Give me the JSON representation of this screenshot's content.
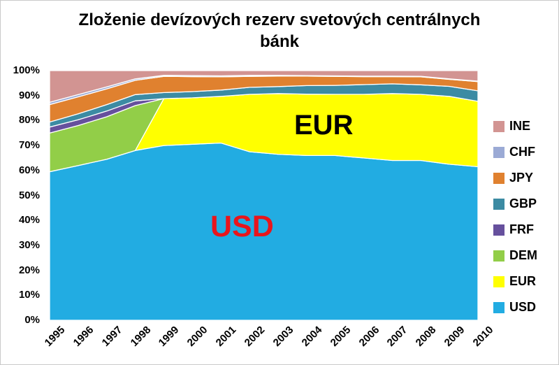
{
  "title": {
    "line1": "Zloženie devízových rezerv svetových centrálnych",
    "line2": "bánk"
  },
  "chart_data": {
    "type": "area",
    "stacked": true,
    "title": "Zloženie devízových rezerv svetových centrálnych bánk",
    "xlabel": "",
    "ylabel": "",
    "ylim": [
      0,
      100
    ],
    "grid": false,
    "legend_position": "right",
    "y_ticks": [
      "100%",
      "90%",
      "80%",
      "70%",
      "60%",
      "50%",
      "40%",
      "30%",
      "20%",
      "10%",
      "0%"
    ],
    "categories": [
      "1995",
      "1996",
      "1997",
      "1998",
      "1999",
      "2000",
      "2001",
      "2002",
      "2003",
      "2004",
      "2005",
      "2006",
      "2007",
      "2008",
      "2009",
      "2010"
    ],
    "series": [
      {
        "name": "USD",
        "color": "#22ACE2",
        "values": [
          59.5,
          62,
          64.5,
          68,
          70,
          70.5,
          71,
          67.5,
          66.5,
          66,
          66,
          65,
          64,
          64,
          62.5,
          61.5
        ]
      },
      {
        "name": "EUR",
        "color": "#FFFF00",
        "values": [
          0,
          0,
          0,
          0,
          18.8,
          18.6,
          18.7,
          23,
          24.3,
          24.6,
          24.5,
          25.5,
          26.8,
          26.5,
          27.2,
          26.2
        ]
      },
      {
        "name": "DEM",
        "color": "#92CE48",
        "values": [
          15.5,
          16,
          17,
          18,
          0,
          0,
          0,
          0,
          0,
          0,
          0,
          0,
          0,
          0,
          0,
          0
        ]
      },
      {
        "name": "FRF",
        "color": "#66509D",
        "values": [
          2.4,
          2.3,
          2.3,
          1.9,
          0,
          0,
          0,
          0,
          0,
          0,
          0,
          0,
          0,
          0,
          0,
          0
        ]
      },
      {
        "name": "GBP",
        "color": "#3C8BA3",
        "values": [
          2.0,
          2.4,
          2.6,
          2.5,
          2.4,
          2.5,
          2.5,
          2.8,
          2.8,
          3.4,
          3.6,
          3.9,
          3.9,
          3.8,
          4.0,
          4.2
        ]
      },
      {
        "name": "JPY",
        "color": "#E0812F",
        "values": [
          7.0,
          6.8,
          6.3,
          5.7,
          6.5,
          6.0,
          5.3,
          4.4,
          4.2,
          3.8,
          3.6,
          3.2,
          2.9,
          3.2,
          2.8,
          3.7
        ]
      },
      {
        "name": "CHF",
        "color": "#9BAAD5",
        "values": [
          0.9,
          0.9,
          0.8,
          0.6,
          0.4,
          0.4,
          0.4,
          0.4,
          0.3,
          0.2,
          0.2,
          0.2,
          0.2,
          0.2,
          0.2,
          0.2
        ]
      },
      {
        "name": "INE",
        "color": "#D29492",
        "values": [
          12.7,
          9.6,
          6.5,
          3.3,
          1.9,
          2.0,
          2.1,
          1.9,
          1.9,
          2.0,
          2.1,
          2.2,
          2.2,
          2.3,
          3.3,
          4.2
        ]
      }
    ],
    "legend": [
      {
        "label": "INE",
        "color": "#D29492"
      },
      {
        "label": "CHF",
        "color": "#9BAAD5"
      },
      {
        "label": "JPY",
        "color": "#E0812F"
      },
      {
        "label": "GBP",
        "color": "#3C8BA3"
      },
      {
        "label": "FRF",
        "color": "#66509D"
      },
      {
        "label": "DEM",
        "color": "#92CE48"
      },
      {
        "label": "EUR",
        "color": "#FFFF00"
      },
      {
        "label": "USD",
        "color": "#22ACE2"
      }
    ],
    "annotations": [
      {
        "text": "EUR",
        "color": "#000000"
      },
      {
        "text": "USD",
        "color": "#E8151C"
      }
    ]
  }
}
